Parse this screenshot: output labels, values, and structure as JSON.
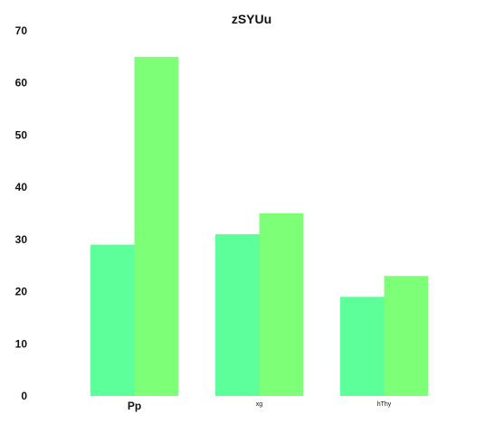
{
  "chart_data": {
    "type": "bar",
    "title": "zSYUu",
    "xlabel": "",
    "ylabel": "",
    "categories": [
      "Pp",
      "xg",
      "hThy"
    ],
    "series": [
      {
        "values": [
          29,
          31,
          19
        ],
        "color": "#5cff9a"
      },
      {
        "values": [
          65,
          35,
          23
        ],
        "color": "#7dff78"
      }
    ],
    "ylim": [
      0,
      70
    ],
    "yticks": [
      0,
      10,
      20,
      30,
      40,
      50,
      60,
      70
    ],
    "grid": false,
    "legend": "none"
  }
}
